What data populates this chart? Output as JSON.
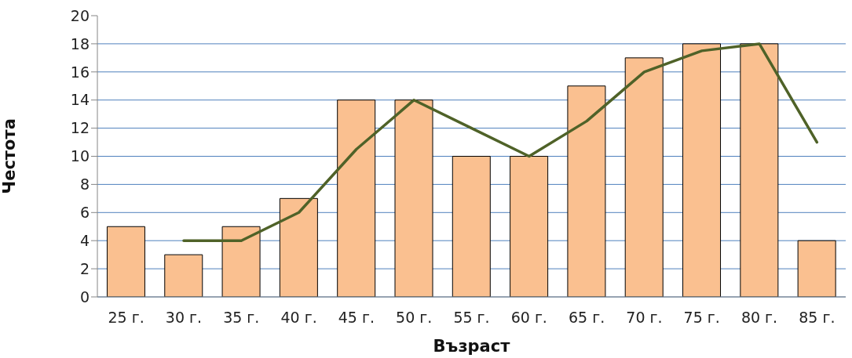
{
  "chart_data": {
    "type": "bar",
    "xlabel": "Възраст",
    "ylabel": "Честота",
    "categories": [
      "25 г.",
      "30 г.",
      "35 г.",
      "40 г.",
      "45 г.",
      "50 г.",
      "55 г.",
      "60 г.",
      "65 г.",
      "70 г.",
      "75 г.",
      "80 г.",
      "85 г."
    ],
    "series": [
      {
        "color": "#fac090",
        "values": [
          5,
          3,
          5,
          7,
          14,
          14,
          10,
          10,
          15,
          17,
          18,
          18,
          4
        ]
      },
      {
        "type": "line",
        "color": "#4f6228",
        "values": [
          null,
          4,
          4,
          6,
          10.5,
          14,
          12,
          10,
          12.5,
          16,
          17.5,
          18,
          11
        ]
      }
    ],
    "ylim": [
      0,
      20
    ],
    "yticks": [
      0,
      2,
      4,
      6,
      8,
      10,
      12,
      14,
      16,
      18,
      20
    ],
    "grid": "y",
    "legend": false,
    "marker": "none"
  }
}
